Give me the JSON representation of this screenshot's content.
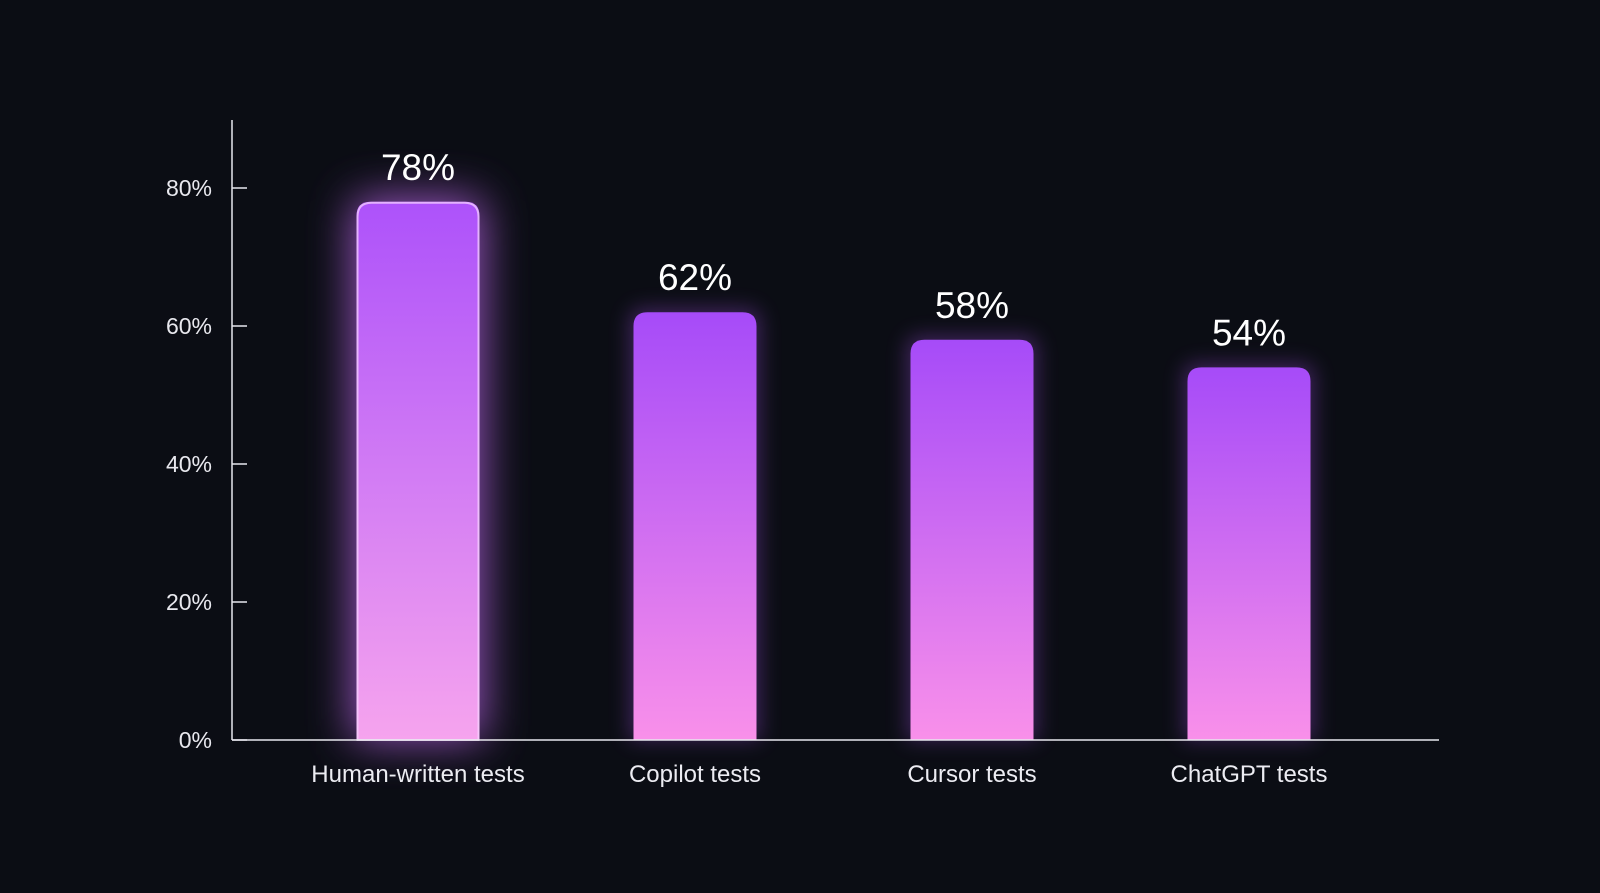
{
  "chart_data": {
    "type": "bar",
    "categories": [
      "Human-written tests",
      "Copilot tests",
      "Cursor tests",
      "ChatGPT tests"
    ],
    "values": [
      78,
      62,
      58,
      54
    ],
    "data_labels": [
      "78%",
      "62%",
      "58%",
      "54%"
    ],
    "title": "",
    "xlabel": "",
    "ylabel": "",
    "ylim": [
      0,
      90
    ],
    "yticks": [
      0,
      20,
      40,
      60,
      80
    ],
    "ytick_labels": [
      "0%",
      "20%",
      "40%",
      "60%",
      "80%"
    ],
    "grid": false,
    "highlighted_category": "Human-written tests",
    "colors": {
      "background": "#0b0d14",
      "bar_top": "#a64bf8",
      "bar_bottom": "#f88fe8",
      "axis": "#e8e8ee"
    }
  }
}
